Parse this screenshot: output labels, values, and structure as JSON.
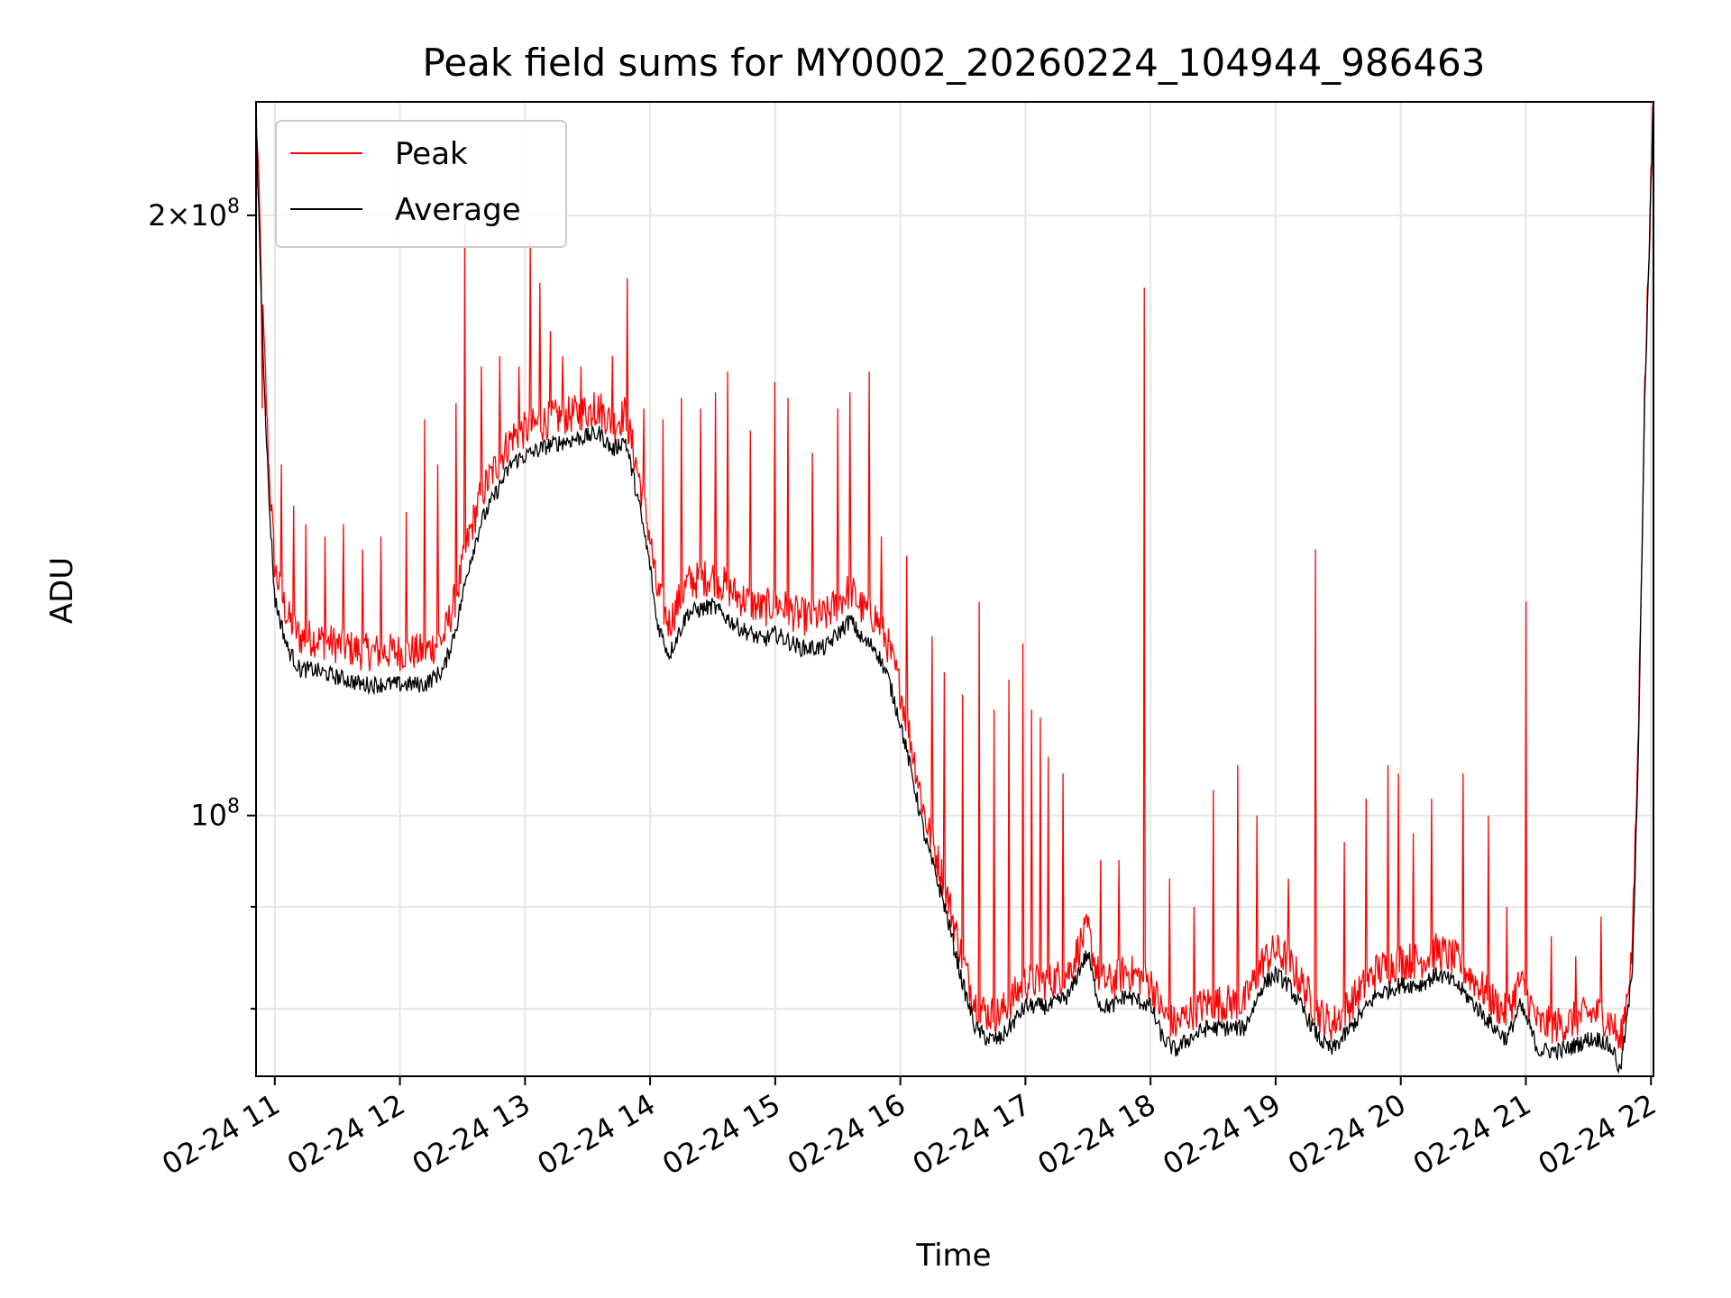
{
  "chart_data": {
    "type": "line",
    "title": "Peak field sums for MY0002_20260224_104944_986463",
    "xlabel": "Time",
    "ylabel": "ADU",
    "y_scale": "log",
    "xlim": [
      10.85,
      22.02
    ],
    "ylim": [
      74000000,
      228000000
    ],
    "x_ticks": [
      11,
      12,
      13,
      14,
      15,
      16,
      17,
      18,
      19,
      20,
      21,
      22
    ],
    "x_tick_labels": [
      "02-24 11",
      "02-24 12",
      "02-24 13",
      "02-24 14",
      "02-24 15",
      "02-24 16",
      "02-24 17",
      "02-24 18",
      "02-24 19",
      "02-24 20",
      "02-24 21",
      "02-24 22"
    ],
    "y_major_ticks": [
      100000000,
      200000000
    ],
    "y_major_tick_labels": [
      "10^8",
      "2×10^8"
    ],
    "y_minor_ticks": [
      80000000,
      90000000
    ],
    "grid": true,
    "legend_position": "upper-left",
    "x_units": "hours on 2026-02-24",
    "series": [
      {
        "name": "Average",
        "color": "#000000",
        "x": [
          10.85,
          10.9,
          10.95,
          11.0,
          11.1,
          11.2,
          11.3,
          11.5,
          11.7,
          11.9,
          12.0,
          12.2,
          12.35,
          12.45,
          12.55,
          12.65,
          12.8,
          12.9,
          13.0,
          13.2,
          13.4,
          13.6,
          13.7,
          13.8,
          13.9,
          14.0,
          14.05,
          14.15,
          14.3,
          14.5,
          14.7,
          14.9,
          15.0,
          15.1,
          15.2,
          15.3,
          15.4,
          15.5,
          15.6,
          15.7,
          15.8,
          15.9,
          16.0,
          16.1,
          16.2,
          16.35,
          16.5,
          16.6,
          16.7,
          16.8,
          17.0,
          17.2,
          17.35,
          17.45,
          17.5,
          17.55,
          17.6,
          17.7,
          17.8,
          18.0,
          18.1,
          18.2,
          18.3,
          18.45,
          18.6,
          18.75,
          18.9,
          19.0,
          19.1,
          19.2,
          19.35,
          19.45,
          19.6,
          19.8,
          20.0,
          20.15,
          20.3,
          20.45,
          20.6,
          20.75,
          20.85,
          20.95,
          21.0,
          21.1,
          21.3,
          21.5,
          21.6,
          21.7,
          21.73,
          21.75,
          21.8,
          21.85,
          21.9,
          21.95,
          22.02
        ],
        "values": [
          222000000,
          175000000,
          145000000,
          128000000,
          121000000,
          118000000,
          118000000,
          117000000,
          116000000,
          116000000,
          116000000,
          116000000,
          118000000,
          124000000,
          133000000,
          140000000,
          146000000,
          150000000,
          151000000,
          153000000,
          154000000,
          155000000,
          152000000,
          154000000,
          144000000,
          133000000,
          125000000,
          120000000,
          126000000,
          127000000,
          124000000,
          122000000,
          123000000,
          122000000,
          121000000,
          121000000,
          121000000,
          123000000,
          125000000,
          122000000,
          121000000,
          117000000,
          111000000,
          104000000,
          97000000,
          90000000,
          82000000,
          78000000,
          77000000,
          77000000,
          80000000,
          80000000,
          81000000,
          84000000,
          85000000,
          82000000,
          80000000,
          80000000,
          81000000,
          80000000,
          77000000,
          76000000,
          77000000,
          78000000,
          78000000,
          78000000,
          82000000,
          83000000,
          82000000,
          80000000,
          77000000,
          76000000,
          78000000,
          81000000,
          82000000,
          82000000,
          83000000,
          82000000,
          80000000,
          78000000,
          77000000,
          80000000,
          79000000,
          76000000,
          76000000,
          77000000,
          77000000,
          76000000,
          75000000,
          74000000,
          78000000,
          83000000,
          108000000,
          160000000,
          228000000
        ]
      },
      {
        "name": "Peak",
        "color": "#ff0000",
        "x": [
          10.85,
          10.9,
          10.95,
          11.0,
          11.1,
          11.2,
          11.3,
          11.5,
          11.7,
          11.9,
          12.0,
          12.2,
          12.35,
          12.45,
          12.55,
          12.65,
          12.8,
          12.9,
          13.0,
          13.2,
          13.4,
          13.6,
          13.7,
          13.8,
          13.9,
          14.0,
          14.05,
          14.15,
          14.3,
          14.5,
          14.7,
          14.9,
          15.0,
          15.1,
          15.2,
          15.3,
          15.4,
          15.5,
          15.6,
          15.7,
          15.8,
          15.9,
          16.0,
          16.1,
          16.2,
          16.35,
          16.5,
          16.6,
          16.7,
          16.8,
          17.0,
          17.2,
          17.35,
          17.45,
          17.5,
          17.55,
          17.6,
          17.7,
          17.8,
          18.0,
          18.1,
          18.2,
          18.3,
          18.45,
          18.6,
          18.75,
          18.9,
          19.0,
          19.1,
          19.2,
          19.35,
          19.45,
          19.6,
          19.8,
          20.0,
          20.15,
          20.3,
          20.45,
          20.6,
          20.75,
          20.85,
          20.95,
          21.0,
          21.1,
          21.3,
          21.5,
          21.6,
          21.7,
          21.73,
          21.75,
          21.8,
          21.85,
          21.9,
          21.95,
          22.02
        ],
        "values": [
          226000000,
          180000000,
          150000000,
          132000000,
          125000000,
          122000000,
          122000000,
          121000000,
          120000000,
          120000000,
          120000000,
          120000000,
          122000000,
          128000000,
          137000000,
          144000000,
          150000000,
          154000000,
          155000000,
          157000000,
          158000000,
          159000000,
          156000000,
          158000000,
          148000000,
          137000000,
          129000000,
          124000000,
          130000000,
          131000000,
          128000000,
          126000000,
          127000000,
          126000000,
          125000000,
          125000000,
          125000000,
          127000000,
          129000000,
          126000000,
          125000000,
          121000000,
          115000000,
          107000000,
          99000000,
          92000000,
          84000000,
          80000000,
          79000000,
          79000000,
          82000000,
          82000000,
          83000000,
          86000000,
          87000000,
          84000000,
          82000000,
          82000000,
          83000000,
          82000000,
          79000000,
          78000000,
          79000000,
          80000000,
          80000000,
          80000000,
          84000000,
          85000000,
          84000000,
          82000000,
          79000000,
          78000000,
          80000000,
          83000000,
          84000000,
          84000000,
          85000000,
          84000000,
          82000000,
          80000000,
          79000000,
          82000000,
          81000000,
          78000000,
          78000000,
          79000000,
          79000000,
          78000000,
          77000000,
          76000000,
          80000000,
          85000000,
          110000000,
          162000000,
          228000000
        ],
        "spikes": [
          [
            10.9,
            160000000
          ],
          [
            11.05,
            150000000
          ],
          [
            11.15,
            143000000
          ],
          [
            11.25,
            140000000
          ],
          [
            11.4,
            138000000
          ],
          [
            11.55,
            140000000
          ],
          [
            11.7,
            136000000
          ],
          [
            11.85,
            138000000
          ],
          [
            12.05,
            142000000
          ],
          [
            12.2,
            158000000
          ],
          [
            12.3,
            150000000
          ],
          [
            12.45,
            161000000
          ],
          [
            12.52,
            198000000
          ],
          [
            12.65,
            168000000
          ],
          [
            12.8,
            170000000
          ],
          [
            12.95,
            168000000
          ],
          [
            13.04,
            194000000
          ],
          [
            13.12,
            185000000
          ],
          [
            13.2,
            175000000
          ],
          [
            13.3,
            170000000
          ],
          [
            13.45,
            168000000
          ],
          [
            13.55,
            163000000
          ],
          [
            13.7,
            170000000
          ],
          [
            13.82,
            186000000
          ],
          [
            13.95,
            160000000
          ],
          [
            14.1,
            158000000
          ],
          [
            14.25,
            162000000
          ],
          [
            14.4,
            160000000
          ],
          [
            14.52,
            163000000
          ],
          [
            14.62,
            167000000
          ],
          [
            14.8,
            156000000
          ],
          [
            15.0,
            165000000
          ],
          [
            15.1,
            162000000
          ],
          [
            15.3,
            152000000
          ],
          [
            15.5,
            160000000
          ],
          [
            15.6,
            163000000
          ],
          [
            15.75,
            167000000
          ],
          [
            15.85,
            138000000
          ],
          [
            16.05,
            135000000
          ],
          [
            16.25,
            123000000
          ],
          [
            16.35,
            118000000
          ],
          [
            16.5,
            115000000
          ],
          [
            16.63,
            128000000
          ],
          [
            16.75,
            113000000
          ],
          [
            16.87,
            117000000
          ],
          [
            16.98,
            122000000
          ],
          [
            17.05,
            113000000
          ],
          [
            17.12,
            112000000
          ],
          [
            17.18,
            107000000
          ],
          [
            17.3,
            105000000
          ],
          [
            17.6,
            95000000
          ],
          [
            17.75,
            95000000
          ],
          [
            17.95,
            184000000
          ],
          [
            18.15,
            93000000
          ],
          [
            18.35,
            90000000
          ],
          [
            18.5,
            103000000
          ],
          [
            18.7,
            106000000
          ],
          [
            18.85,
            100000000
          ],
          [
            19.1,
            93000000
          ],
          [
            19.32,
            136000000
          ],
          [
            19.55,
            97000000
          ],
          [
            19.72,
            102000000
          ],
          [
            19.9,
            106000000
          ],
          [
            19.98,
            105000000
          ],
          [
            20.1,
            98000000
          ],
          [
            20.25,
            102000000
          ],
          [
            20.5,
            105000000
          ],
          [
            20.7,
            100000000
          ],
          [
            20.85,
            90000000
          ],
          [
            21.0,
            128000000
          ],
          [
            21.2,
            87000000
          ],
          [
            21.4,
            85000000
          ],
          [
            21.6,
            89000000
          ]
        ]
      }
    ]
  }
}
